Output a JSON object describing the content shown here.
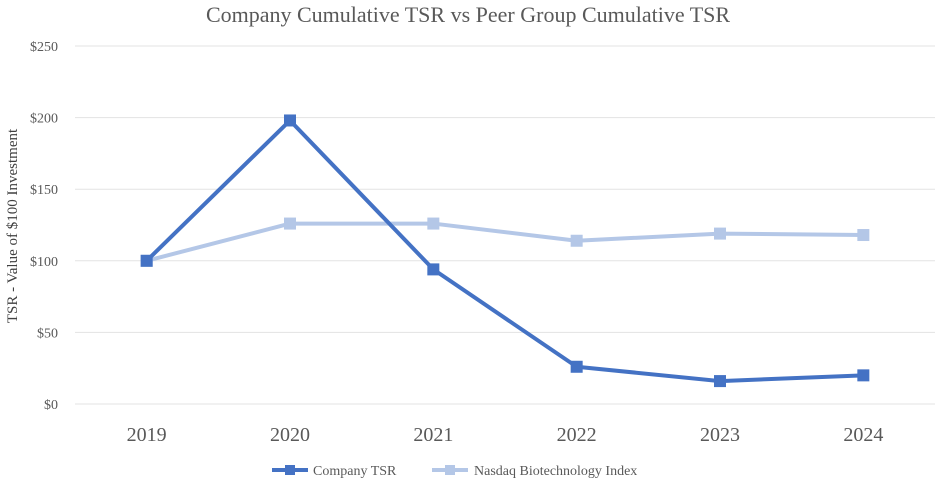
{
  "chart_data": {
    "type": "line",
    "title": "Company Cumulative TSR vs Peer Group Cumulative TSR",
    "xlabel": "",
    "ylabel": "TSR - Value of $100 Investment",
    "categories": [
      "2019",
      "2020",
      "2021",
      "2022",
      "2023",
      "2024"
    ],
    "ylim": [
      0,
      250
    ],
    "yticks": [
      0,
      50,
      100,
      150,
      200,
      250
    ],
    "ytick_labels": [
      "$0",
      "$50",
      "$100",
      "$150",
      "$200",
      "$250"
    ],
    "grid": true,
    "legend_position": "bottom",
    "series": [
      {
        "name": "Company TSR",
        "color": "#4472c4",
        "marker": "square",
        "values": [
          100,
          198,
          94,
          26,
          16,
          20
        ]
      },
      {
        "name": "Nasdaq Biotechnology Index",
        "color": "#b4c7e7",
        "marker": "square",
        "values": [
          100,
          126,
          126,
          114,
          119,
          118
        ]
      }
    ]
  }
}
